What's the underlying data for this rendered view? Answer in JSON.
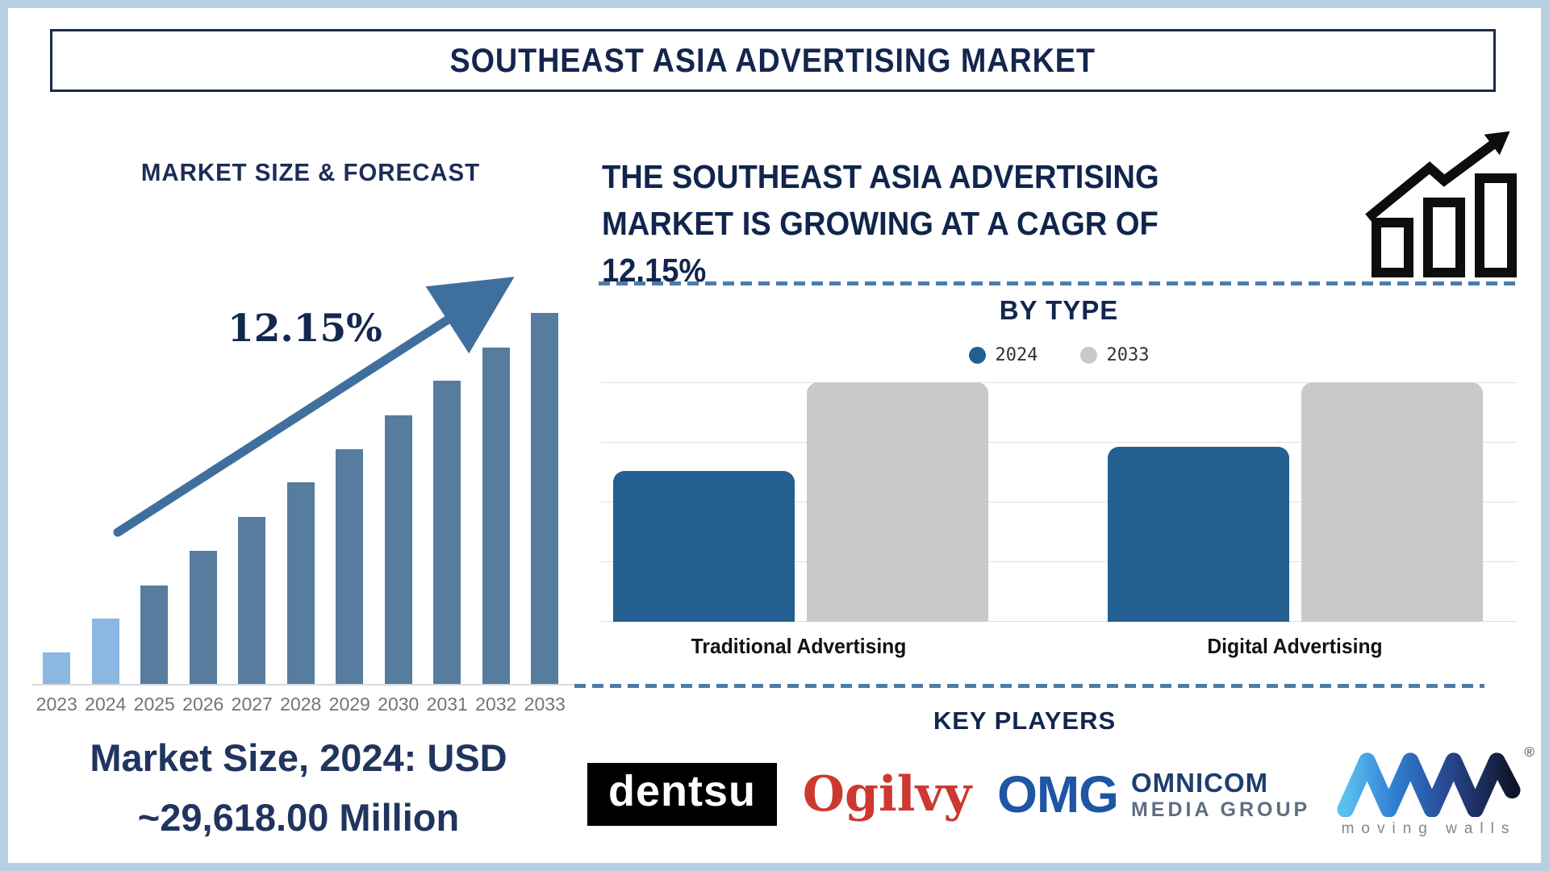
{
  "page": {
    "title": "SOUTHEAST ASIA ADVERTISING MARKET"
  },
  "market_size_section": {
    "heading": "MARKET SIZE & FORECAST",
    "cagr_annotation": "12.15%",
    "caption_line1": "Market Size, 2024: USD",
    "caption_line2": "~29,618.00 Million"
  },
  "headline": {
    "text": "THE SOUTHEAST ASIA ADVERTISING\nMARKET IS GROWING AT A CAGR OF\n12.15%"
  },
  "by_type": {
    "heading": "BY TYPE",
    "legend": {
      "s2024": {
        "label": "2024",
        "color": "#235f90"
      },
      "s2033": {
        "label": "2033",
        "color": "#c9c9c9"
      }
    },
    "categories": {
      "traditional": "Traditional Advertising",
      "digital": "Digital Advertising"
    }
  },
  "key_players": {
    "heading": "KEY PLAYERS",
    "logos": {
      "dentsu": "dentsu",
      "ogilvy": "Ogilvy",
      "omg": "OMG",
      "omnicom_line1": "OMNICOM",
      "omnicom_line2": "MEDIA GROUP",
      "moving_walls": "moving walls",
      "registered_mark": "®"
    }
  },
  "colors": {
    "navy_text": "#14264e",
    "steel_bar": "#567c9e",
    "light_bar": "#8bb7e2",
    "arrow": "#3f6f9d",
    "blue_2024_bar": "#235f90",
    "gray_2033_bar": "#c9c9c9",
    "dashed_line": "#4d7ca8",
    "frame": "#b5cfe3",
    "year_label": "#6c7681"
  },
  "chart_data": [
    {
      "type": "bar",
      "title": "MARKET SIZE & FORECAST",
      "categories": [
        "2023",
        "2024",
        "2025",
        "2026",
        "2027",
        "2028",
        "2029",
        "2030",
        "2031",
        "2032",
        "2033"
      ],
      "values_relative_pct": [
        8.5,
        17.7,
        26.5,
        35.9,
        45.0,
        54.3,
        63.3,
        72.4,
        81.7,
        90.7,
        100
      ],
      "annotation": "12.15%",
      "xlabel": "",
      "ylabel": "",
      "axis_labels_shown": false,
      "note": "No numeric y-axis shown; values are relative bar heights (% of 2033 bar). Market Size 2024 = USD ~29,618.00 Million; CAGR 12.15%.",
      "style": "2023-2024 bars light blue, 2025-2033 steel blue, rising trend arrow overlay",
      "grid": false,
      "legend_position": "none"
    },
    {
      "type": "bar",
      "title": "BY TYPE",
      "categories": [
        "Traditional Advertising",
        "Digital Advertising"
      ],
      "series": [
        {
          "name": "2024",
          "values_relative_pct": [
            63,
            73
          ],
          "color": "#235f90"
        },
        {
          "name": "2033",
          "values_relative_pct": [
            100,
            100
          ],
          "color": "#c9c9c9"
        }
      ],
      "note": "No numeric y-axis shown; values are relative bar heights (% of chart height).",
      "grid": true,
      "gridline_count": 5,
      "legend_position": "top"
    }
  ]
}
